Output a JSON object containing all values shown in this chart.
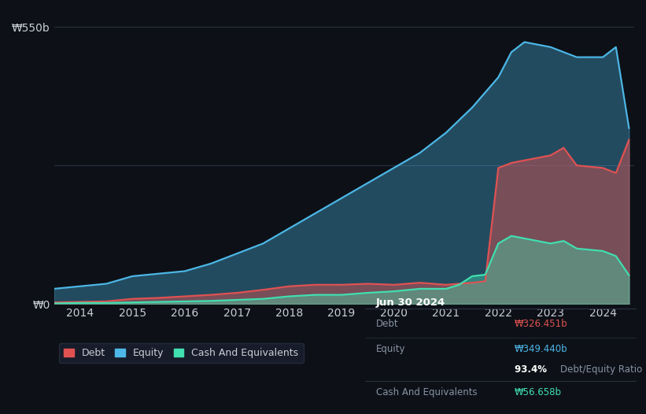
{
  "background_color": "#0d1117",
  "plot_bg_color": "#0d1117",
  "title_box": {
    "date": "Jun 30 2024",
    "debt_label": "Debt",
    "debt_value": "₩326.451b",
    "equity_label": "Equity",
    "equity_value": "₩349.440b",
    "ratio_value": "93.4%",
    "ratio_label": "Debt/Equity Ratio",
    "cash_label": "Cash And Equivalents",
    "cash_value": "₩56.658b"
  },
  "y_label": "₩550b",
  "y_zero_label": "₩0",
  "x_ticks": [
    "2014",
    "2015",
    "2016",
    "2017",
    "2018",
    "2019",
    "2020",
    "2021",
    "2022",
    "2023",
    "2024"
  ],
  "colors": {
    "debt": "#e05252",
    "equity": "#4db8e8",
    "cash": "#40e0b0",
    "grid": "#2a3040",
    "text_main": "#c8ccd4",
    "text_dim": "#8892a4",
    "box_bg": "#161b22",
    "box_border": "#2a3040"
  },
  "equity_data": {
    "years": [
      2013.5,
      2014.0,
      2014.5,
      2015.0,
      2015.5,
      2016.0,
      2016.5,
      2017.0,
      2017.5,
      2018.0,
      2018.5,
      2019.0,
      2019.5,
      2020.0,
      2020.5,
      2021.0,
      2021.5,
      2022.0,
      2022.25,
      2022.5,
      2023.0,
      2023.5,
      2024.0,
      2024.25,
      2024.5
    ],
    "values": [
      30,
      35,
      40,
      55,
      60,
      65,
      80,
      100,
      120,
      150,
      180,
      210,
      240,
      270,
      300,
      340,
      390,
      450,
      500,
      520,
      510,
      490,
      490,
      510,
      349
    ]
  },
  "debt_data": {
    "years": [
      2013.5,
      2014.0,
      2014.5,
      2015.0,
      2015.5,
      2016.0,
      2016.5,
      2017.0,
      2017.5,
      2018.0,
      2018.5,
      2019.0,
      2019.5,
      2020.0,
      2020.5,
      2021.0,
      2021.5,
      2021.75,
      2022.0,
      2022.25,
      2022.5,
      2023.0,
      2023.25,
      2023.5,
      2024.0,
      2024.25,
      2024.5
    ],
    "values": [
      3,
      4,
      5,
      10,
      12,
      15,
      18,
      22,
      28,
      35,
      38,
      38,
      40,
      38,
      42,
      38,
      42,
      45,
      270,
      280,
      285,
      295,
      310,
      275,
      270,
      260,
      326
    ]
  },
  "cash_data": {
    "years": [
      2013.5,
      2014.0,
      2014.5,
      2015.0,
      2015.5,
      2016.0,
      2016.5,
      2017.0,
      2017.5,
      2018.0,
      2018.5,
      2019.0,
      2019.5,
      2020.0,
      2020.5,
      2021.0,
      2021.25,
      2021.5,
      2021.75,
      2022.0,
      2022.25,
      2022.5,
      2023.0,
      2023.25,
      2023.5,
      2024.0,
      2024.25,
      2024.5
    ],
    "values": [
      1,
      2,
      2,
      3,
      4,
      5,
      6,
      8,
      10,
      15,
      18,
      18,
      22,
      25,
      30,
      30,
      38,
      55,
      58,
      120,
      135,
      130,
      120,
      125,
      110,
      105,
      95,
      57
    ]
  },
  "ylim": [
    0,
    580
  ],
  "xlim": [
    2013.5,
    2024.6
  ],
  "legend": [
    {
      "label": "Debt",
      "color": "#e05252"
    },
    {
      "label": "Equity",
      "color": "#4db8e8"
    },
    {
      "label": "Cash And Equivalents",
      "color": "#40e0b0"
    }
  ]
}
